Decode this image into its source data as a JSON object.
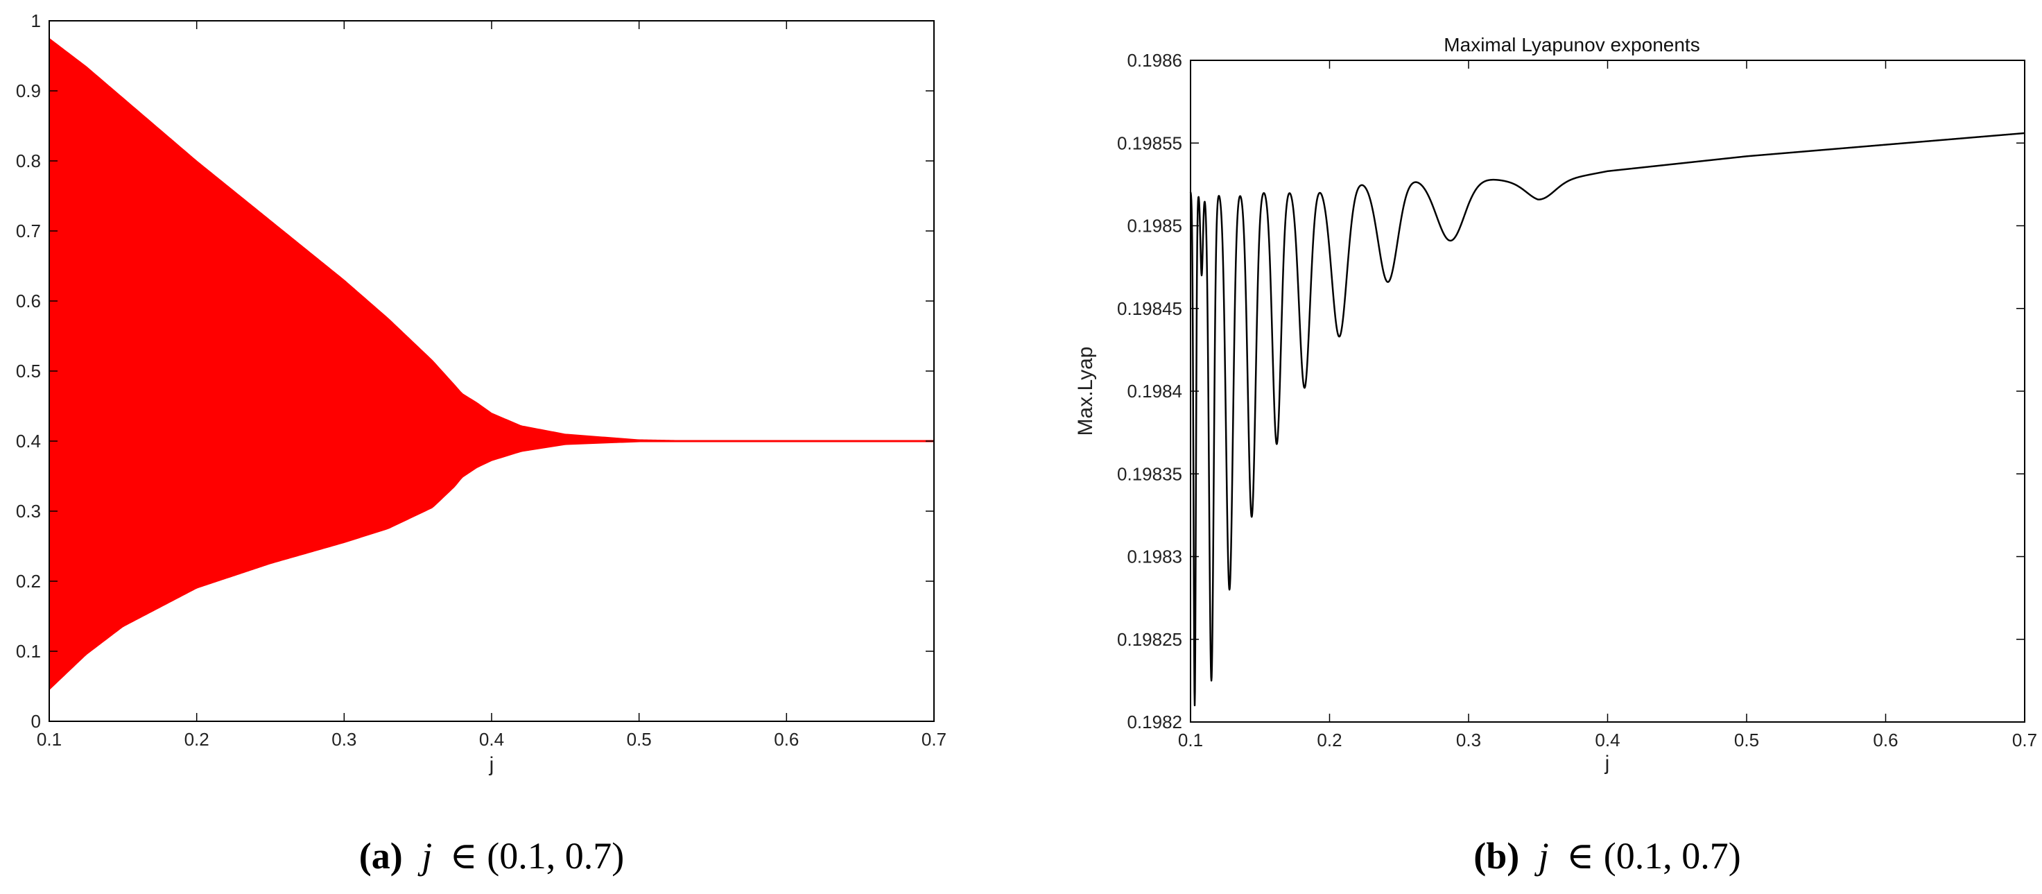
{
  "chart_data": [
    {
      "type": "area",
      "title": "",
      "xlabel": "j",
      "ylabel": "",
      "xlim": [
        0.1,
        0.7
      ],
      "ylim": [
        0,
        1
      ],
      "xticks": [
        "0.1",
        "0.2",
        "0.3",
        "0.4",
        "0.5",
        "0.6",
        "0.7"
      ],
      "yticks": [
        "0",
        "0.1",
        "0.2",
        "0.3",
        "0.4",
        "0.5",
        "0.6",
        "0.7",
        "0.8",
        "0.9",
        "1"
      ],
      "color": "#ff0000",
      "series": [
        {
          "name": "upper",
          "x": [
            0.1,
            0.125,
            0.15,
            0.2,
            0.25,
            0.3,
            0.33,
            0.36,
            0.375,
            0.38,
            0.39,
            0.4,
            0.42,
            0.45,
            0.5,
            0.55,
            0.6,
            0.7
          ],
          "values": [
            0.975,
            0.935,
            0.89,
            0.8,
            0.715,
            0.63,
            0.575,
            0.515,
            0.48,
            0.468,
            0.455,
            0.44,
            0.422,
            0.41,
            0.402,
            0.4,
            0.4,
            0.4
          ]
        },
        {
          "name": "lower",
          "x": [
            0.1,
            0.125,
            0.15,
            0.2,
            0.25,
            0.3,
            0.33,
            0.36,
            0.375,
            0.38,
            0.39,
            0.4,
            0.42,
            0.45,
            0.5,
            0.55,
            0.6,
            0.7
          ],
          "values": [
            0.045,
            0.095,
            0.135,
            0.19,
            0.225,
            0.255,
            0.275,
            0.305,
            0.335,
            0.348,
            0.362,
            0.372,
            0.385,
            0.395,
            0.399,
            0.4,
            0.4,
            0.4
          ]
        }
      ],
      "caption": {
        "label": "(a)",
        "var": "j",
        "relation": "∈ (0.1, 0.7)"
      }
    },
    {
      "type": "line",
      "title": "Maximal Lyapunov exponents",
      "xlabel": "j",
      "ylabel": "Max.Lyap",
      "xlim": [
        0.1,
        0.7
      ],
      "ylim": [
        0.1982,
        0.1986
      ],
      "xticks": [
        "0.1",
        "0.2",
        "0.3",
        "0.4",
        "0.5",
        "0.6",
        "0.7"
      ],
      "yticks": [
        "0.1982",
        "0.19825",
        "0.1983",
        "0.19835",
        "0.1984",
        "0.19845",
        "0.1985",
        "0.19855",
        "0.1986"
      ],
      "color": "#000000",
      "oscillation": {
        "baseline": [
          [
            0.1,
            0.198521
          ],
          [
            0.15,
            0.198523
          ],
          [
            0.2,
            0.198526
          ],
          [
            0.25,
            0.198529
          ],
          [
            0.3,
            0.19853
          ],
          [
            0.35,
            0.198525
          ],
          [
            0.4,
            0.198533
          ],
          [
            0.5,
            0.198542
          ],
          [
            0.6,
            0.198549
          ],
          [
            0.7,
            0.198556
          ]
        ],
        "minima": [
          {
            "x": 0.103,
            "y": 0.19821
          },
          {
            "x": 0.108,
            "y": 0.19847
          },
          {
            "x": 0.115,
            "y": 0.198225
          },
          {
            "x": 0.128,
            "y": 0.19828
          },
          {
            "x": 0.144,
            "y": 0.198324
          },
          {
            "x": 0.162,
            "y": 0.198368
          },
          {
            "x": 0.182,
            "y": 0.198402
          },
          {
            "x": 0.207,
            "y": 0.198433
          },
          {
            "x": 0.242,
            "y": 0.198466
          },
          {
            "x": 0.287,
            "y": 0.198491
          },
          {
            "x": 0.352,
            "y": 0.198516
          }
        ]
      },
      "caption": {
        "label": "(b)",
        "var": "j",
        "relation": "∈ (0.1, 0.7)"
      }
    }
  ]
}
